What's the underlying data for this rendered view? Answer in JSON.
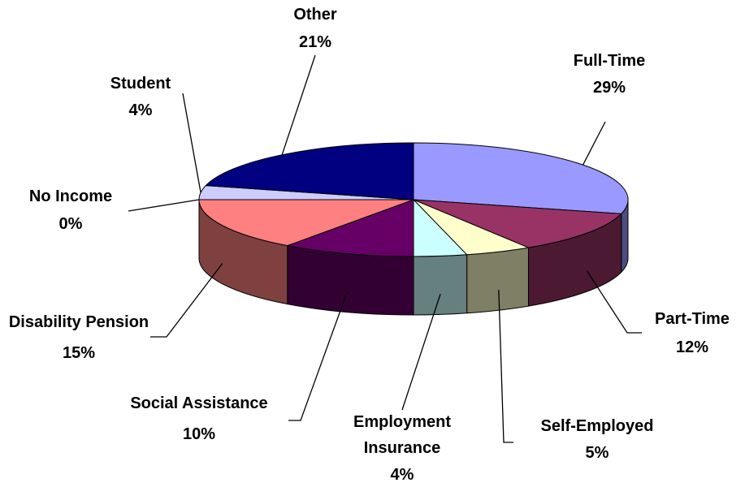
{
  "chart_data": {
    "type": "pie",
    "categories": [
      "Full-Time",
      "Part-Time",
      "Self-Employed",
      "Employment Insurance",
      "Social Assistance",
      "Disability Pension",
      "No Income",
      "Student",
      "Other"
    ],
    "values": [
      29,
      12,
      5,
      4,
      10,
      15,
      0,
      4,
      21
    ],
    "value_labels": [
      "29%",
      "12%",
      "5%",
      "4%",
      "10%",
      "15%",
      "0%",
      "4%",
      "21%"
    ],
    "colors": [
      "#9999FF",
      "#993366",
      "#FFFFCC",
      "#CCFFFF",
      "#660066",
      "#FF8080",
      "#0066CC",
      "#CCCCFF",
      "#000080"
    ]
  }
}
